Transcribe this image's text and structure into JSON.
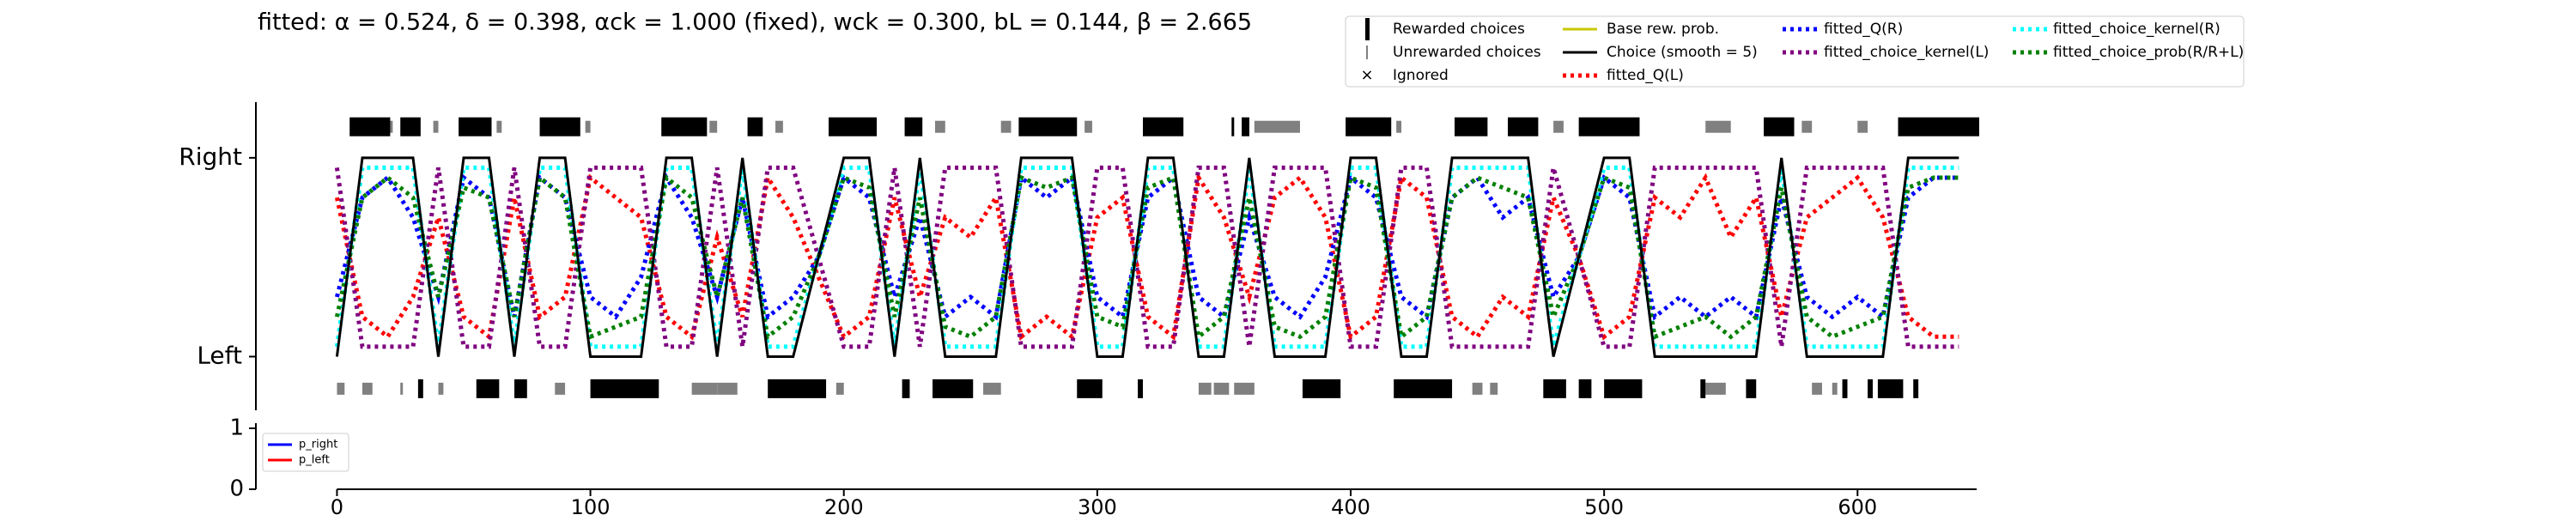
{
  "chart_data": {
    "type": "line",
    "title": "fitted: α = 0.524, δ = 0.398, αck = 1.000 (fixed), wck = 0.300, bL = 0.144, β = 2.665",
    "xlim": [
      -32,
      647
    ],
    "ylim": [
      -0.27,
      1.28
    ],
    "yticks": [
      {
        "value": 0,
        "label": "Left"
      },
      {
        "value": 1,
        "label": "Right"
      }
    ],
    "xticks": [
      0,
      100,
      200,
      300,
      400,
      500,
      600
    ],
    "markers": {
      "rewarded": {
        "name": "Rewarded choices",
        "color": "#000000"
      },
      "unrewarded": {
        "name": "Unrewarded choices",
        "color": "#808080"
      },
      "ignored": {
        "name": "Ignored",
        "color": "#e00000"
      }
    },
    "base_prob": {
      "name": "Base rew. prob.",
      "color": "#c8c800"
    },
    "rewarded_right": [
      [
        5,
        21
      ],
      [
        25,
        33
      ],
      [
        48,
        61
      ],
      [
        80,
        96
      ],
      [
        128,
        146
      ],
      [
        162,
        168
      ],
      [
        194,
        213
      ],
      [
        224,
        231
      ],
      [
        269,
        292
      ],
      [
        318,
        334
      ],
      [
        353,
        354
      ],
      [
        357,
        360
      ],
      [
        398,
        416
      ],
      [
        441,
        454
      ],
      [
        462,
        474
      ],
      [
        490,
        514
      ],
      [
        563,
        575
      ],
      [
        616,
        648
      ]
    ],
    "unrewarded_right": [
      [
        17,
        22
      ],
      [
        38,
        40
      ],
      [
        48,
        52
      ],
      [
        63,
        65
      ],
      [
        98,
        100
      ],
      [
        147,
        150
      ],
      [
        173,
        176
      ],
      [
        208,
        212
      ],
      [
        236,
        240
      ],
      [
        262,
        266
      ],
      [
        295,
        298
      ],
      [
        362,
        380
      ],
      [
        418,
        420
      ],
      [
        447,
        450
      ],
      [
        480,
        484
      ],
      [
        500,
        506
      ],
      [
        540,
        550
      ],
      [
        578,
        582
      ],
      [
        600,
        604
      ]
    ],
    "rewarded_left": [
      [
        32,
        34
      ],
      [
        55,
        64
      ],
      [
        70,
        75
      ],
      [
        100,
        127
      ],
      [
        170,
        193
      ],
      [
        223,
        226
      ],
      [
        235,
        251
      ],
      [
        292,
        302
      ],
      [
        316,
        318
      ],
      [
        381,
        396
      ],
      [
        417,
        440
      ],
      [
        476,
        485
      ],
      [
        490,
        495
      ],
      [
        500,
        515
      ],
      [
        538,
        540
      ],
      [
        556,
        560
      ],
      [
        594,
        596
      ],
      [
        604,
        606
      ],
      [
        608,
        618
      ],
      [
        622,
        624
      ]
    ],
    "unrewarded_left": [
      [
        0,
        3
      ],
      [
        10,
        14
      ],
      [
        25,
        26
      ],
      [
        40,
        42
      ],
      [
        86,
        90
      ],
      [
        140,
        150
      ],
      [
        150,
        158
      ],
      [
        197,
        200
      ],
      [
        242,
        245
      ],
      [
        255,
        262
      ],
      [
        340,
        345
      ],
      [
        346,
        352
      ],
      [
        354,
        362
      ],
      [
        448,
        452
      ],
      [
        455,
        458
      ],
      [
        540,
        548
      ],
      [
        582,
        586
      ],
      [
        590,
        592
      ]
    ],
    "x": [
      0,
      10,
      20,
      30,
      40,
      50,
      60,
      70,
      80,
      90,
      100,
      110,
      120,
      130,
      140,
      150,
      160,
      170,
      180,
      190,
      200,
      210,
      220,
      230,
      240,
      250,
      260,
      270,
      280,
      290,
      300,
      310,
      320,
      330,
      340,
      350,
      360,
      370,
      380,
      390,
      400,
      410,
      420,
      430,
      440,
      450,
      460,
      470,
      480,
      490,
      500,
      510,
      520,
      530,
      540,
      550,
      560,
      570,
      580,
      590,
      600,
      610,
      620,
      630,
      640
    ],
    "series": [
      {
        "name": "fitted_Q(L)",
        "color": "#ff0000",
        "style": "dotted",
        "values": [
          0.8,
          0.2,
          0.1,
          0.3,
          0.7,
          0.2,
          0.1,
          0.8,
          0.2,
          0.3,
          0.9,
          0.8,
          0.7,
          0.2,
          0.1,
          0.6,
          0.2,
          0.9,
          0.7,
          0.4,
          0.1,
          0.2,
          0.8,
          0.3,
          0.7,
          0.6,
          0.8,
          0.1,
          0.2,
          0.1,
          0.7,
          0.8,
          0.2,
          0.1,
          0.9,
          0.7,
          0.3,
          0.8,
          0.9,
          0.7,
          0.1,
          0.2,
          0.9,
          0.8,
          0.2,
          0.1,
          0.3,
          0.2,
          0.8,
          0.5,
          0.1,
          0.2,
          0.8,
          0.7,
          0.9,
          0.6,
          0.8,
          0.2,
          0.7,
          0.8,
          0.9,
          0.7,
          0.2,
          0.1,
          0.1
        ]
      },
      {
        "name": "fitted_Q(R)",
        "color": "#0000ff",
        "style": "dotted",
        "values": [
          0.3,
          0.8,
          0.9,
          0.7,
          0.3,
          0.9,
          0.8,
          0.2,
          0.9,
          0.8,
          0.3,
          0.2,
          0.4,
          0.9,
          0.7,
          0.3,
          0.8,
          0.2,
          0.3,
          0.5,
          0.9,
          0.8,
          0.3,
          0.7,
          0.2,
          0.3,
          0.2,
          0.9,
          0.8,
          0.9,
          0.3,
          0.2,
          0.8,
          0.9,
          0.3,
          0.2,
          0.7,
          0.3,
          0.2,
          0.4,
          0.9,
          0.8,
          0.3,
          0.2,
          0.8,
          0.9,
          0.7,
          0.8,
          0.3,
          0.5,
          0.9,
          0.8,
          0.2,
          0.3,
          0.2,
          0.3,
          0.2,
          0.8,
          0.3,
          0.2,
          0.3,
          0.2,
          0.8,
          0.9,
          0.9
        ]
      },
      {
        "name": "fitted_choice_kernel(L)",
        "color": "#800080",
        "style": "dotted",
        "values": [
          0.95,
          0.05,
          0.05,
          0.05,
          0.95,
          0.05,
          0.05,
          0.95,
          0.05,
          0.05,
          0.95,
          0.95,
          0.95,
          0.05,
          0.05,
          0.95,
          0.05,
          0.95,
          0.95,
          0.5,
          0.05,
          0.05,
          0.95,
          0.05,
          0.95,
          0.95,
          0.95,
          0.05,
          0.05,
          0.05,
          0.95,
          0.95,
          0.05,
          0.05,
          0.95,
          0.95,
          0.05,
          0.95,
          0.95,
          0.95,
          0.05,
          0.05,
          0.95,
          0.95,
          0.05,
          0.05,
          0.05,
          0.05,
          0.95,
          0.5,
          0.05,
          0.05,
          0.95,
          0.95,
          0.95,
          0.95,
          0.95,
          0.05,
          0.95,
          0.95,
          0.95,
          0.95,
          0.05,
          0.05,
          0.05
        ]
      },
      {
        "name": "fitted_choice_kernel(R)",
        "color": "#00ffff",
        "style": "dotted",
        "values": [
          0.05,
          0.95,
          0.95,
          0.95,
          0.05,
          0.95,
          0.95,
          0.05,
          0.95,
          0.95,
          0.05,
          0.05,
          0.05,
          0.95,
          0.95,
          0.05,
          0.95,
          0.05,
          0.05,
          0.5,
          0.95,
          0.95,
          0.05,
          0.95,
          0.05,
          0.05,
          0.05,
          0.95,
          0.95,
          0.95,
          0.05,
          0.05,
          0.95,
          0.95,
          0.05,
          0.05,
          0.95,
          0.05,
          0.05,
          0.05,
          0.95,
          0.95,
          0.05,
          0.05,
          0.95,
          0.95,
          0.95,
          0.95,
          0.05,
          0.5,
          0.95,
          0.95,
          0.05,
          0.05,
          0.05,
          0.05,
          0.05,
          0.95,
          0.05,
          0.05,
          0.05,
          0.05,
          0.95,
          0.95,
          0.95
        ]
      },
      {
        "name": "fitted_choice_prob(R/R+L)",
        "color": "#008000",
        "style": "dotted",
        "values": [
          0.2,
          0.8,
          0.9,
          0.8,
          0.3,
          0.85,
          0.8,
          0.2,
          0.9,
          0.8,
          0.1,
          0.15,
          0.2,
          0.9,
          0.8,
          0.3,
          0.8,
          0.1,
          0.2,
          0.5,
          0.9,
          0.85,
          0.2,
          0.8,
          0.15,
          0.1,
          0.2,
          0.9,
          0.85,
          0.9,
          0.2,
          0.15,
          0.85,
          0.9,
          0.1,
          0.2,
          0.8,
          0.15,
          0.1,
          0.2,
          0.9,
          0.85,
          0.1,
          0.2,
          0.8,
          0.9,
          0.85,
          0.8,
          0.2,
          0.5,
          0.9,
          0.85,
          0.1,
          0.15,
          0.2,
          0.1,
          0.2,
          0.85,
          0.2,
          0.1,
          0.15,
          0.2,
          0.85,
          0.9,
          0.9
        ]
      },
      {
        "name": "Choice (smooth = 5)",
        "color": "#000000",
        "style": "solid",
        "values": [
          0,
          1,
          1,
          1,
          0,
          1,
          1,
          0,
          1,
          1,
          0,
          0,
          0,
          1,
          1,
          0,
          1,
          0,
          0,
          0.5,
          1,
          1,
          0,
          1,
          0,
          0,
          0,
          1,
          1,
          1,
          0,
          0,
          1,
          1,
          0,
          0,
          1,
          0,
          0,
          0,
          1,
          1,
          0,
          0,
          1,
          1,
          1,
          1,
          0,
          0.5,
          1,
          1,
          0,
          0,
          0,
          0,
          0,
          1,
          0,
          0,
          0,
          0,
          1,
          1,
          1
        ]
      }
    ],
    "sub": {
      "ylim": [
        0,
        1
      ],
      "yticks": [
        0,
        1
      ],
      "legend": [
        {
          "name": "p_right",
          "color": "#0000ff"
        },
        {
          "name": "p_left",
          "color": "#ff0000"
        }
      ]
    }
  }
}
